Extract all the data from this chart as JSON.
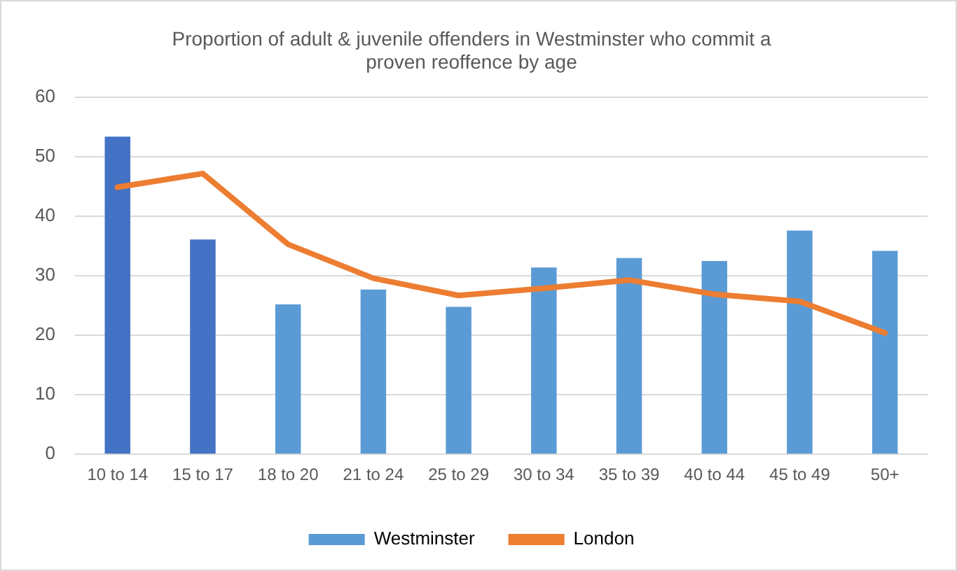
{
  "chart_data": {
    "type": "bar",
    "title": "Proportion of adult & juvenile offenders in Westminster who commit a proven reoffence by age",
    "categories": [
      "10 to 14",
      "15 to 17",
      "18 to 20",
      "21 to 24",
      "25 to 29",
      "30 to 34",
      "35 to 39",
      "40 to 44",
      "45 to 49",
      "50+"
    ],
    "series": [
      {
        "name": "Westminster",
        "color": "#5b9bd5",
        "colors": [
          "#4472c4",
          "#4472c4",
          "#5b9bd5",
          "#5b9bd5",
          "#5b9bd5",
          "#5b9bd5",
          "#5b9bd5",
          "#5b9bd5",
          "#5b9bd5",
          "#5b9bd5"
        ],
        "values": [
          53.4,
          36.1,
          25.2,
          27.7,
          24.8,
          31.4,
          33.0,
          32.5,
          37.6,
          34.2
        ]
      },
      {
        "name": "London",
        "type": "line",
        "color": "#ed7d31",
        "values": [
          44.9,
          47.2,
          35.3,
          29.6,
          26.7,
          27.9,
          29.3,
          26.9,
          25.7,
          20.4
        ]
      }
    ],
    "ylim": [
      0,
      60
    ],
    "yticks": [
      0,
      10,
      20,
      30,
      40,
      50,
      60
    ],
    "grid": "y",
    "legend": "bottom",
    "marker": "none"
  }
}
